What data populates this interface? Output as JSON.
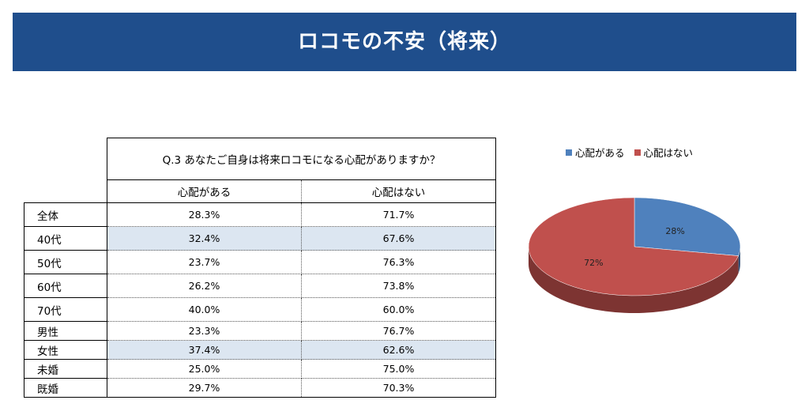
{
  "banner": {
    "title": "ロコモの不安（将来）"
  },
  "table": {
    "question": "Q.3  あなたご自身は将来ロコモになる心配がありますか？",
    "headers": [
      "心配がある",
      "心配はない"
    ],
    "rows": [
      {
        "label": "全体",
        "a": "28.3%",
        "b": "71.7%"
      },
      {
        "label": "40代",
        "a": "32.4%",
        "b": "67.6%"
      },
      {
        "label": "50代",
        "a": "23.7%",
        "b": "76.3%"
      },
      {
        "label": "60代",
        "a": "26.2%",
        "b": "73.8%"
      },
      {
        "label": "70代",
        "a": "40.0%",
        "b": "60.0%"
      },
      {
        "label": "男性",
        "a": "23.3%",
        "b": "76.7%"
      },
      {
        "label": "女性",
        "a": "37.4%",
        "b": "62.6%"
      },
      {
        "label": "未婚",
        "a": "25.0%",
        "b": "75.0%"
      },
      {
        "label": "既婚",
        "a": "29.7%",
        "b": "70.3%"
      }
    ],
    "highlight_color": "#dce6f1"
  },
  "chart_data": {
    "type": "pie",
    "categories": [
      "心配がある",
      "心配はない"
    ],
    "values": [
      28,
      72
    ],
    "labels": [
      "28%",
      "72%"
    ],
    "colors": [
      "#4f81bd",
      "#c0504d"
    ],
    "legend": "top",
    "style": "3d"
  }
}
